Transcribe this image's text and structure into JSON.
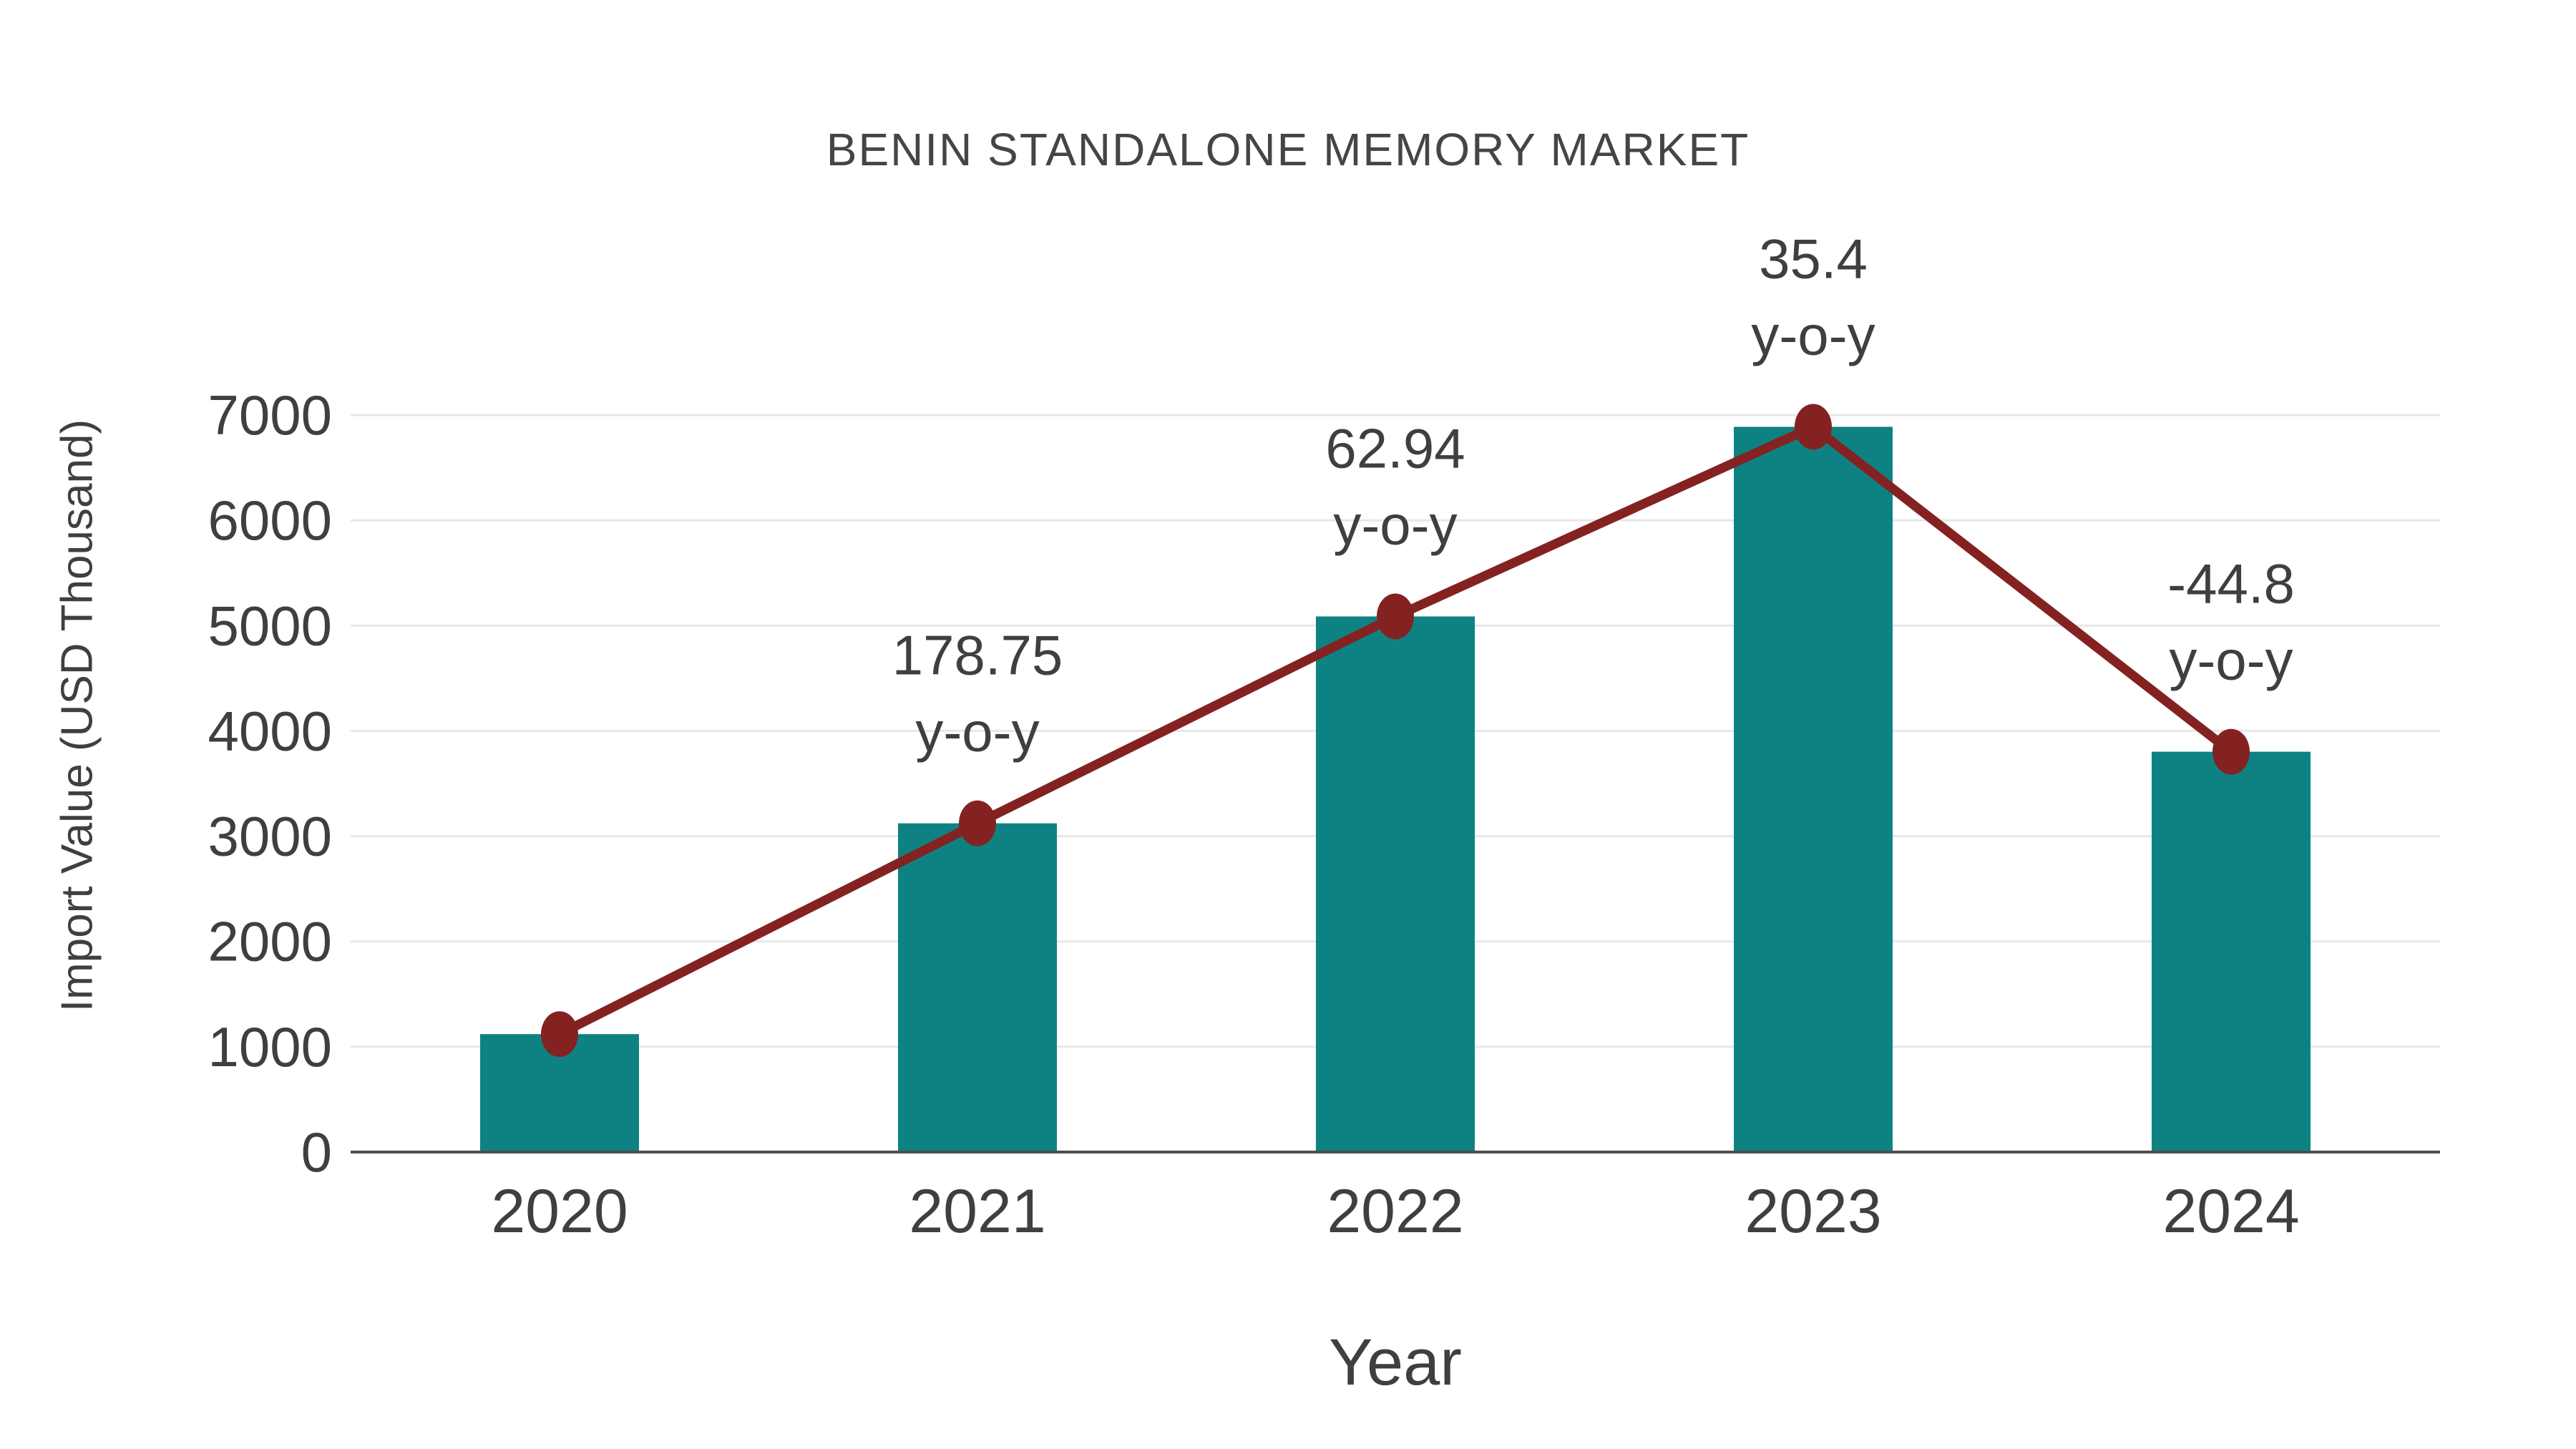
{
  "chart_data": {
    "type": "bar",
    "title": "BENIN STANDALONE MEMORY MARKET",
    "xlabel": "Year",
    "ylabel": "Import Value (USD Thousand)",
    "categories": [
      "2020",
      "2021",
      "2022",
      "2023",
      "2024"
    ],
    "series": [
      {
        "name": "Import Value (USD Thousand)",
        "type": "bar",
        "values": [
          1120,
          3122,
          5087,
          6888,
          3802
        ]
      },
      {
        "name": "Import Value trend line",
        "type": "line",
        "values": [
          1120,
          3122,
          5087,
          6888,
          3802
        ]
      }
    ],
    "yoy_annotations": [
      {
        "category": "2021",
        "value": "178.75",
        "suffix": "y-o-y"
      },
      {
        "category": "2022",
        "value": "62.94",
        "suffix": "y-o-y"
      },
      {
        "category": "2023",
        "value": "35.4",
        "suffix": "y-o-y"
      },
      {
        "category": "2024",
        "value": "-44.8",
        "suffix": "y-o-y"
      }
    ],
    "ylim": [
      0,
      7000
    ],
    "yticks": [
      0,
      1000,
      2000,
      3000,
      4000,
      5000,
      6000,
      7000
    ],
    "grid": true,
    "legend": false,
    "colors": {
      "bar": "#0e8282",
      "line": "#842222",
      "marker": "#842222",
      "text": "#3f3f3f",
      "grid": "#e7e7e7",
      "axis": "#4d4d4d"
    }
  }
}
